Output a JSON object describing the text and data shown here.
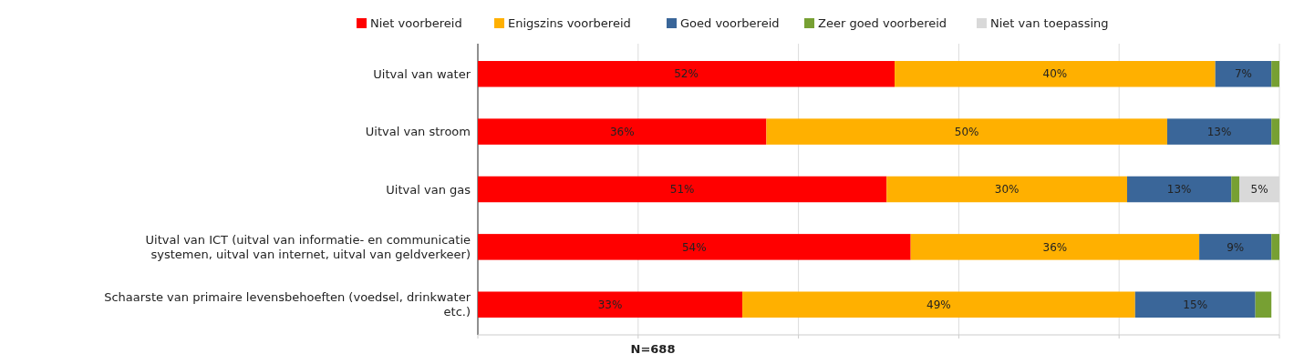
{
  "chart_data": {
    "type": "bar",
    "orientation": "horizontal",
    "stacked": true,
    "categories": [
      "Uitval van water",
      "Uitval van stroom",
      "Uitval van gas",
      "Uitval van ICT (uitval van informatie- en communicatie systemen, uitval van internet, uitval van geldverkeer)",
      "Schaarste van primaire levensbehoeften (voedsel, drinkwater etc.)"
    ],
    "series": [
      {
        "name": "Niet voorbereid",
        "color": "#ff0000",
        "values": [
          52,
          36,
          51,
          54,
          33
        ],
        "value_labels": [
          "52%",
          "36%",
          "51%",
          "54%",
          "33%"
        ]
      },
      {
        "name": "Enigszins voorbereid",
        "color": "#ffb000",
        "values": [
          40,
          50,
          30,
          36,
          49
        ],
        "value_labels": [
          "40%",
          "50%",
          "30%",
          "36%",
          "49%"
        ]
      },
      {
        "name": "Goed voorbereid",
        "color": "#3a6699",
        "values": [
          7,
          13,
          13,
          9,
          15
        ],
        "value_labels": [
          "7%",
          "13%",
          "13%",
          "9%",
          "15%"
        ]
      },
      {
        "name": "Zeer goed voorbereid",
        "color": "#77a033",
        "values": [
          1,
          1,
          1,
          1,
          2
        ],
        "value_labels": [
          null,
          null,
          null,
          null,
          null
        ]
      },
      {
        "name": "Niet van toepassing",
        "color": "#d9d9d9",
        "values": [
          0,
          0,
          5,
          0,
          0
        ],
        "value_labels": [
          null,
          null,
          "5%",
          null,
          null
        ]
      }
    ],
    "xlim": [
      0,
      100
    ],
    "xticks": [
      {
        "value": 0,
        "label": null
      },
      {
        "value": 20,
        "label": null
      },
      {
        "value": 40,
        "label": null
      },
      {
        "value": 60,
        "label": null
      },
      {
        "value": 80,
        "label": null
      },
      {
        "value": 100,
        "label": null
      }
    ],
    "tick_labels": "y",
    "grid": "x",
    "legend": "top",
    "annotations": [
      "N=688"
    ]
  }
}
